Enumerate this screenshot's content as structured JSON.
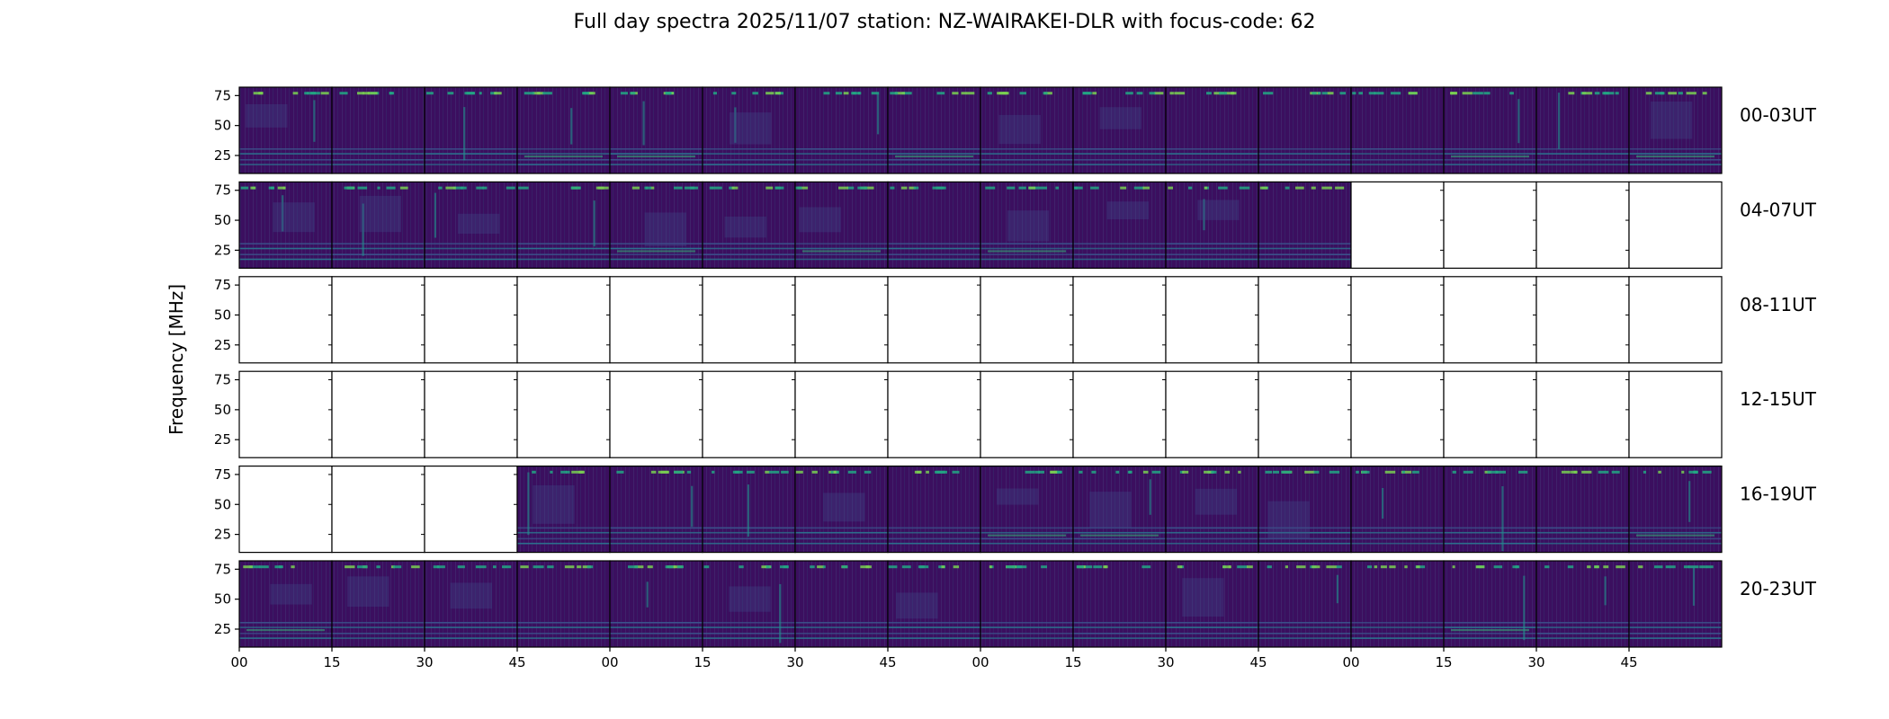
{
  "chart_data": {
    "type": "heatmap",
    "title": "Full day spectra 2025/11/07 station: NZ-WAIRAKEI-DLR with focus-code: 62",
    "ylabel": "Frequency [MHz]",
    "xlabel": "",
    "ylim": [
      10,
      82
    ],
    "ytick_labels": [
      "75",
      "50",
      "25"
    ],
    "ytick_values": [
      75,
      50,
      25
    ],
    "xtick_labels": [
      "00",
      "15",
      "30",
      "45",
      "00",
      "15",
      "30",
      "45",
      "00",
      "15",
      "30",
      "45",
      "00",
      "15",
      "30",
      "45"
    ],
    "columns_per_row": 16,
    "rows": [
      {
        "label": "00-03UT",
        "has_data": [
          1,
          1,
          1,
          1,
          1,
          1,
          1,
          1,
          1,
          1,
          1,
          1,
          1,
          1,
          1,
          1
        ]
      },
      {
        "label": "04-07UT",
        "has_data": [
          1,
          1,
          1,
          1,
          1,
          1,
          1,
          1,
          1,
          1,
          1,
          1,
          0,
          0,
          0,
          0
        ]
      },
      {
        "label": "08-11UT",
        "has_data": [
          0,
          0,
          0,
          0,
          0,
          0,
          0,
          0,
          0,
          0,
          0,
          0,
          0,
          0,
          0,
          0
        ]
      },
      {
        "label": "12-15UT",
        "has_data": [
          0,
          0,
          0,
          0,
          0,
          0,
          0,
          0,
          0,
          0,
          0,
          0,
          0,
          0,
          0,
          0
        ]
      },
      {
        "label": "16-19UT",
        "has_data": [
          0,
          0,
          0,
          1,
          1,
          1,
          1,
          1,
          1,
          1,
          1,
          1,
          1,
          1,
          1,
          1
        ]
      },
      {
        "label": "20-23UT",
        "has_data": [
          1,
          1,
          1,
          1,
          1,
          1,
          1,
          1,
          1,
          1,
          1,
          1,
          1,
          1,
          1,
          1
        ]
      }
    ],
    "colormap": {
      "low": "#440154",
      "mid": "#31688e",
      "high": "#fde725",
      "background": "#3b0f5f"
    }
  }
}
